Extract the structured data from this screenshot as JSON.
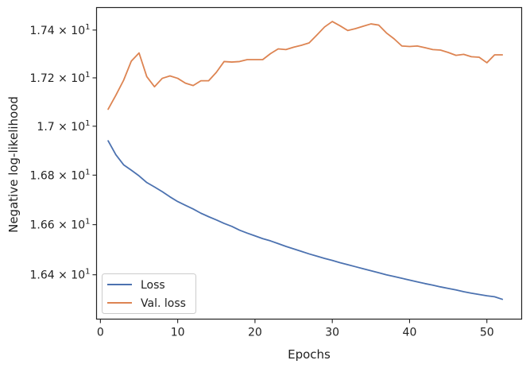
{
  "chart_data": {
    "type": "line",
    "title": "",
    "xlabel": "Epochs",
    "ylabel": "Negative log-likelihood",
    "xlim": [
      -0.5,
      54.5
    ],
    "ylim": [
      16.225,
      17.495
    ],
    "yscale": "log",
    "xticks": [
      0,
      10,
      20,
      30,
      40,
      50
    ],
    "yticks": [
      {
        "value": 16.4,
        "mantissa": "1.64",
        "base": "10",
        "exp": "1"
      },
      {
        "value": 16.6,
        "mantissa": "1.66",
        "base": "10",
        "exp": "1"
      },
      {
        "value": 16.8,
        "mantissa": "1.68",
        "base": "10",
        "exp": "1"
      },
      {
        "value": 17.0,
        "mantissa": "1.7",
        "base": "10",
        "exp": "1"
      },
      {
        "value": 17.2,
        "mantissa": "1.72",
        "base": "10",
        "exp": "1"
      },
      {
        "value": 17.4,
        "mantissa": "1.74",
        "base": "10",
        "exp": "1"
      }
    ],
    "grid": false,
    "legend_position": "lower-left",
    "x": [
      1,
      2,
      3,
      4,
      5,
      6,
      7,
      8,
      9,
      10,
      11,
      12,
      13,
      14,
      15,
      16,
      17,
      18,
      19,
      20,
      21,
      22,
      23,
      24,
      25,
      26,
      27,
      28,
      29,
      30,
      31,
      32,
      33,
      34,
      35,
      36,
      37,
      38,
      39,
      40,
      41,
      42,
      43,
      44,
      45,
      46,
      47,
      48,
      49,
      50,
      51,
      52
    ],
    "series": [
      {
        "name": "Loss",
        "color": "#4c72b0",
        "values": [
          16.94,
          16.883,
          16.842,
          16.82,
          16.797,
          16.77,
          16.752,
          16.733,
          16.712,
          16.693,
          16.678,
          16.663,
          16.646,
          16.632,
          16.619,
          16.605,
          16.593,
          16.578,
          16.566,
          16.555,
          16.544,
          16.535,
          16.524,
          16.513,
          16.503,
          16.493,
          16.483,
          16.474,
          16.465,
          16.457,
          16.448,
          16.44,
          16.432,
          16.424,
          16.416,
          16.408,
          16.4,
          16.393,
          16.386,
          16.379,
          16.372,
          16.365,
          16.359,
          16.352,
          16.346,
          16.34,
          16.333,
          16.327,
          16.322,
          16.317,
          16.313,
          16.303
        ]
      },
      {
        "name": "Val. loss",
        "color": "#dd8452",
        "values": [
          17.07,
          17.128,
          17.19,
          17.27,
          17.304,
          17.205,
          17.163,
          17.198,
          17.208,
          17.198,
          17.178,
          17.168,
          17.188,
          17.188,
          17.223,
          17.268,
          17.266,
          17.268,
          17.276,
          17.276,
          17.276,
          17.301,
          17.321,
          17.318,
          17.328,
          17.336,
          17.346,
          17.379,
          17.413,
          17.436,
          17.418,
          17.398,
          17.406,
          17.416,
          17.426,
          17.421,
          17.388,
          17.363,
          17.333,
          17.331,
          17.333,
          17.326,
          17.318,
          17.316,
          17.306,
          17.294,
          17.298,
          17.288,
          17.286,
          17.263,
          17.296,
          17.296
        ]
      }
    ]
  }
}
